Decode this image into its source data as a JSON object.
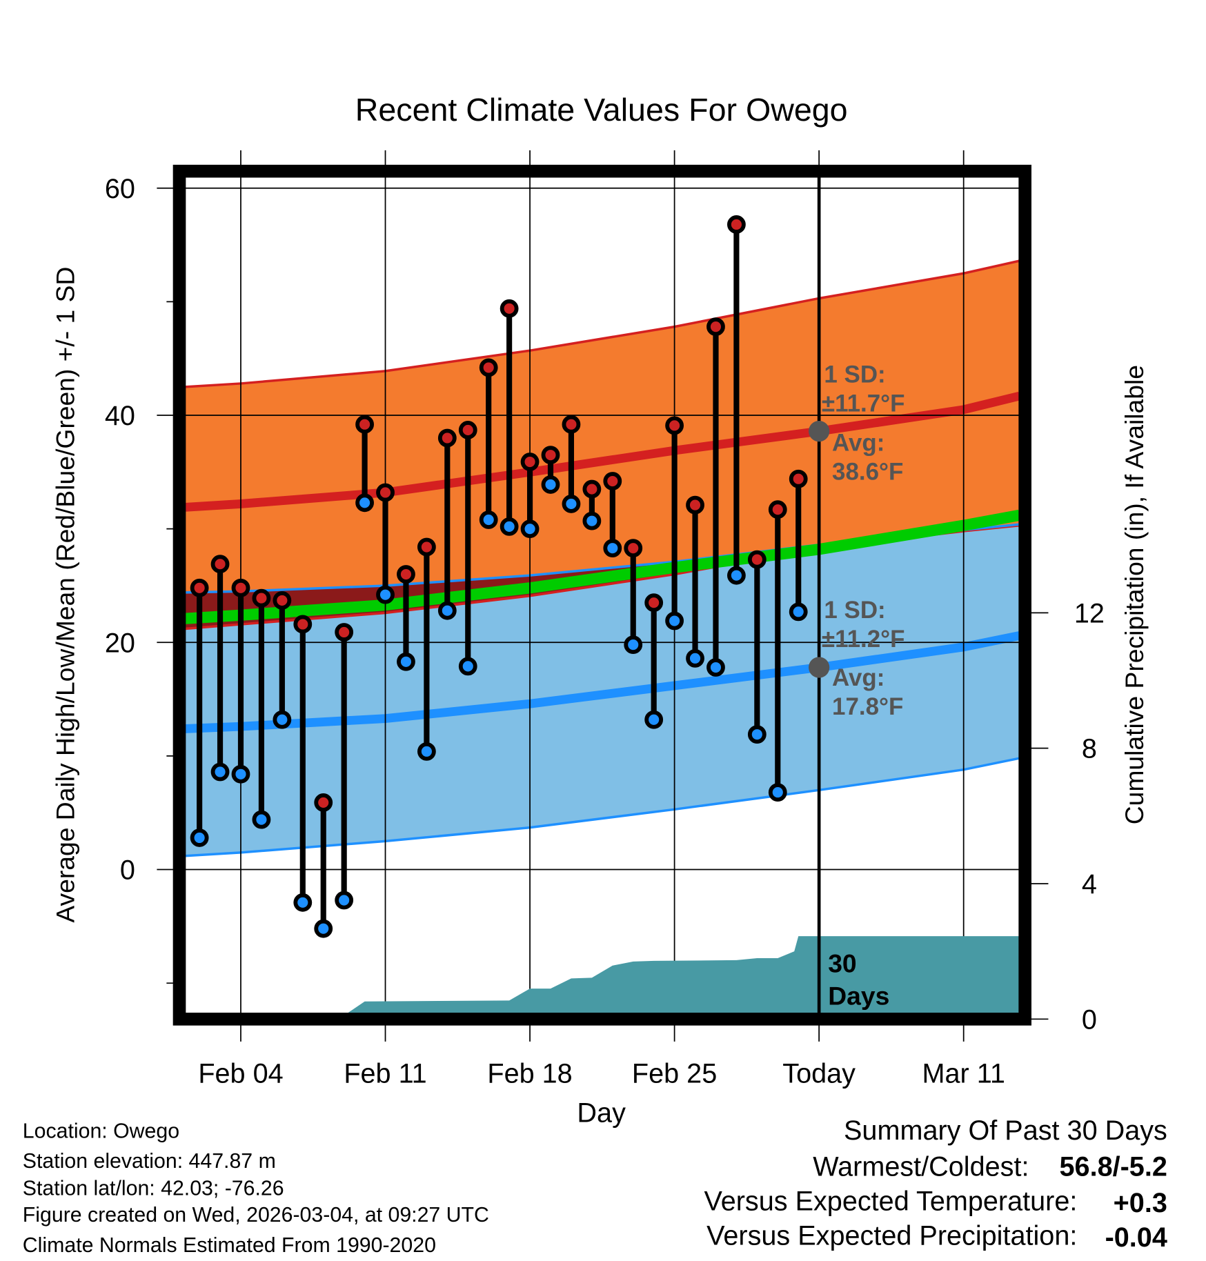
{
  "chart_data": {
    "type": "line",
    "title": "Recent Climate Values For Owego",
    "xlabel": "Day",
    "ylabel": "Average Daily High/Low/Mean (Red/Blue/Green) +/- 1 SD",
    "y2label": "Cumulative Precipitation (in), If Available",
    "ylim": [
      -12.6,
      61
    ],
    "y_ticks": [
      0,
      20,
      40,
      60
    ],
    "y_minor_ticks": [
      -10,
      10,
      30,
      50
    ],
    "y2lim": [
      0,
      14
    ],
    "y2_ticks": [
      0,
      4,
      8,
      12
    ],
    "x_day_range": [
      1.3,
      41.7
    ],
    "x_ticks": [
      {
        "day": 4,
        "label": "Feb 04"
      },
      {
        "day": 11,
        "label": "Feb 11"
      },
      {
        "day": 18,
        "label": "Feb 18"
      },
      {
        "day": 25,
        "label": "Feb 25"
      },
      {
        "day": 32,
        "label": "Today"
      },
      {
        "day": 39,
        "label": "Mar 11"
      }
    ],
    "today_day": 32,
    "days": [
      2,
      3,
      4,
      5,
      6,
      7,
      8,
      9,
      10,
      11,
      12,
      13,
      14,
      15,
      16,
      17,
      18,
      19,
      20,
      21,
      22,
      23,
      24,
      25,
      26,
      27,
      28,
      29,
      30,
      31
    ],
    "highs": [
      24.8,
      26.9,
      24.8,
      23.9,
      23.7,
      21.6,
      5.9,
      20.9,
      39.2,
      33.2,
      26.0,
      28.4,
      38.0,
      38.7,
      44.2,
      49.4,
      35.9,
      36.5,
      39.2,
      33.5,
      34.2,
      28.3,
      23.5,
      39.1,
      32.1,
      47.8,
      56.8,
      27.3,
      31.7,
      34.4
    ],
    "lows": [
      2.8,
      8.6,
      8.4,
      4.4,
      13.2,
      -2.9,
      -5.2,
      -2.7,
      32.3,
      24.2,
      18.3,
      10.4,
      22.8,
      17.9,
      30.8,
      30.2,
      30.0,
      33.9,
      32.2,
      30.7,
      28.3,
      19.8,
      13.2,
      21.9,
      18.6,
      17.8,
      25.9,
      11.9,
      6.8,
      22.7
    ],
    "normals": {
      "days": [
        1.3,
        4,
        11,
        18,
        25,
        32,
        39,
        41.7
      ],
      "high_upper": [
        42.5,
        42.8,
        43.9,
        45.7,
        47.8,
        50.3,
        52.5,
        53.6
      ],
      "high_mean": [
        31.9,
        32.2,
        33.2,
        35.0,
        36.9,
        38.6,
        40.5,
        41.7
      ],
      "high_lower": [
        21.2,
        21.6,
        22.6,
        24.1,
        26.0,
        28.3,
        29.8,
        30.3
      ],
      "mean": [
        22.1,
        22.4,
        23.3,
        24.8,
        26.6,
        28.2,
        30.3,
        31.2
      ],
      "low_upper": [
        24.4,
        24.5,
        25.0,
        25.9,
        27.1,
        28.6,
        29.9,
        30.4
      ],
      "low_mean": [
        12.4,
        12.6,
        13.3,
        14.6,
        16.2,
        17.8,
        19.6,
        20.6
      ],
      "low_lower": [
        1.2,
        1.5,
        2.5,
        3.7,
        5.3,
        7.0,
        8.8,
        9.8
      ]
    },
    "precip_cumulative": {
      "days": [
        1.3,
        9.2,
        10,
        17,
        18,
        19,
        20,
        21,
        22,
        23,
        24,
        28,
        29,
        30,
        30.8,
        31,
        41.7
      ],
      "values": [
        0,
        0,
        0.52,
        0.55,
        0.9,
        0.9,
        1.2,
        1.22,
        1.58,
        1.7,
        1.72,
        1.74,
        1.8,
        1.8,
        2.0,
        2.45,
        2.45
      ]
    },
    "annotations": {
      "high_sd_label": "1 SD:",
      "high_sd_value": "±11.7°F",
      "high_avg_label": "Avg:",
      "high_avg_value": "38.6°F",
      "high_avg": 38.6,
      "low_sd_label": "1 SD:",
      "low_sd_value": "±11.2°F",
      "low_avg_label": "Avg:",
      "low_avg_value": "17.8°F",
      "low_avg": 17.8,
      "days_label_1": "30",
      "days_label_2": "Days"
    },
    "colors": {
      "high_band": "#f47b2e",
      "low_band": "#80bfe6",
      "overlap": "#8b1a1a",
      "mean_line": "#00cc00",
      "high_line": "#d42020",
      "low_line": "#1e90ff",
      "precip": "#489aa4",
      "high_dot": "#cc2222",
      "low_dot": "#1e90ff"
    }
  },
  "info": {
    "location": "Location: Owego",
    "elevation": "Station elevation: 447.87 m",
    "latlon": "Station lat/lon: 42.03; -76.26",
    "created": "Figure created on Wed, 2026-03-04, at 09:27 UTC",
    "normals": "Climate Normals Estimated From 1990-2020"
  },
  "summary": {
    "title": "Summary Of Past 30 Days",
    "warm_cold_label": "Warmest/Coldest:",
    "warm_cold_value": "56.8/-5.2",
    "temp_label": "Versus Expected Temperature:",
    "temp_value": "+0.3",
    "precip_label": "Versus Expected Precipitation:",
    "precip_value": "-0.04",
    "temp_color": "#d42020",
    "precip_color": "#a0522d"
  }
}
